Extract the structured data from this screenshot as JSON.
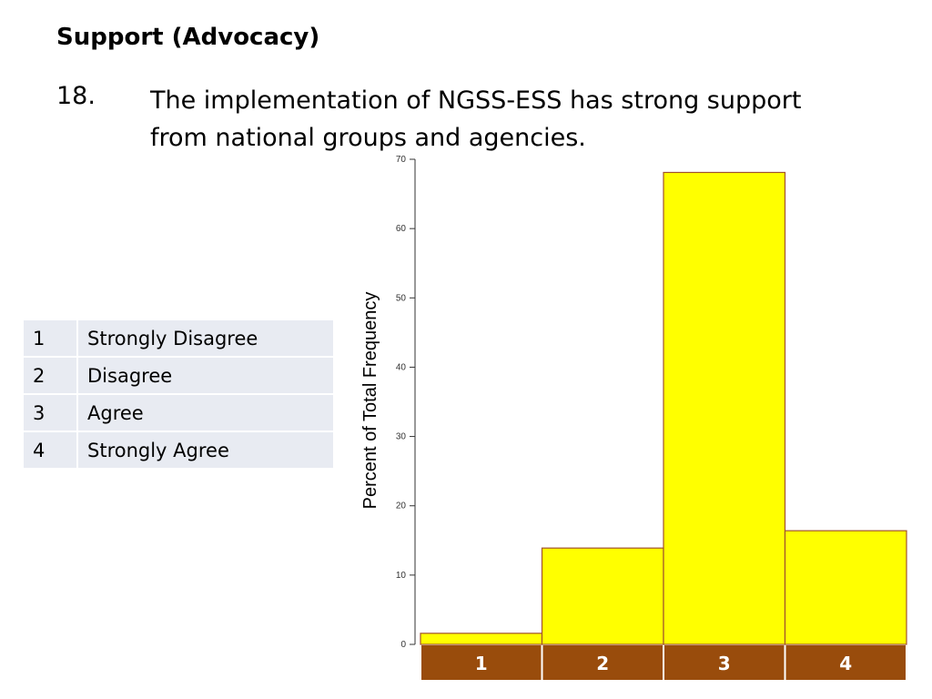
{
  "slide": {
    "title": "Support (Advocacy)",
    "question_number": "18.",
    "question_line1": "The implementation of NGSS-ESS has strong support",
    "question_line2": "from national groups and agencies."
  },
  "legend": [
    {
      "code": "1",
      "label": "Strongly Disagree"
    },
    {
      "code": "2",
      "label": "Disagree"
    },
    {
      "code": "3",
      "label": "Agree"
    },
    {
      "code": "4",
      "label": "Strongly Agree"
    }
  ],
  "colors": {
    "bar_fill": "#ffff00",
    "bar_stroke": "#a0522d",
    "category_band": "#994c0c",
    "axis": "#333333",
    "legend_bg": "#e8ebf2"
  },
  "chart_data": {
    "type": "bar",
    "categories": [
      "1",
      "2",
      "3",
      "4"
    ],
    "values": [
      1.6,
      13.9,
      68.1,
      16.4
    ],
    "ylabel": "Percent of Total Frequency",
    "xlabel": "",
    "ylim": [
      0,
      70
    ],
    "yticks": [
      0,
      10,
      20,
      30,
      40,
      50,
      60,
      70
    ],
    "grid": false
  }
}
